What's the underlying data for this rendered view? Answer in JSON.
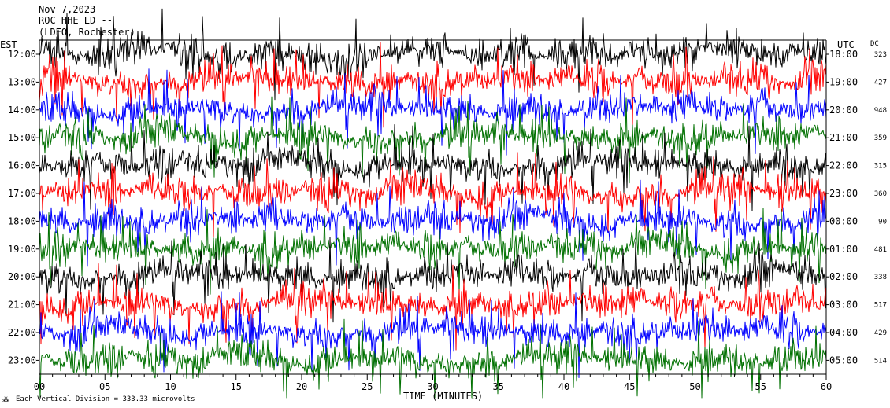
{
  "header": {
    "date": "Nov 7,2023",
    "station": "ROC HHE LD --",
    "network": "(LDEO, Rochester)"
  },
  "footer": {
    "scale_note": "Each Vertical Division =  333.33 microvolts"
  },
  "chart_data": {
    "type": "line",
    "xlabel": "TIME (MINUTES)",
    "xlim": [
      0,
      60
    ],
    "x_ticks": [
      "00",
      "05",
      "10",
      "15",
      "20",
      "25",
      "30",
      "35",
      "40",
      "45",
      "50",
      "55",
      "60"
    ],
    "left_axis_title": "EST",
    "right_axis_title": "UTC",
    "dc_title": "DC",
    "trace_colors": [
      "#000000",
      "#ff0000",
      "#0000ff",
      "#007000"
    ],
    "rows": [
      {
        "est": "12:00",
        "utc": "18:00",
        "dc": "323",
        "color": "#000000"
      },
      {
        "est": "13:00",
        "utc": "19:00",
        "dc": "427",
        "color": "#ff0000"
      },
      {
        "est": "14:00",
        "utc": "20:00",
        "dc": "948",
        "color": "#0000ff"
      },
      {
        "est": "15:00",
        "utc": "21:00",
        "dc": "359",
        "color": "#007000"
      },
      {
        "est": "16:00",
        "utc": "22:00",
        "dc": "315",
        "color": "#000000"
      },
      {
        "est": "17:00",
        "utc": "23:00",
        "dc": "360",
        "color": "#ff0000"
      },
      {
        "est": "18:00",
        "utc": "00:00",
        "dc": "90",
        "color": "#0000ff"
      },
      {
        "est": "19:00",
        "utc": "01:00",
        "dc": "481",
        "color": "#007000"
      },
      {
        "est": "20:00",
        "utc": "02:00",
        "dc": "338",
        "color": "#000000"
      },
      {
        "est": "21:00",
        "utc": "03:00",
        "dc": "517",
        "color": "#ff0000"
      },
      {
        "est": "22:00",
        "utc": "04:00",
        "dc": "429",
        "color": "#0000ff"
      },
      {
        "est": "23:00",
        "utc": "05:00",
        "dc": "514",
        "color": "#007000"
      }
    ]
  }
}
